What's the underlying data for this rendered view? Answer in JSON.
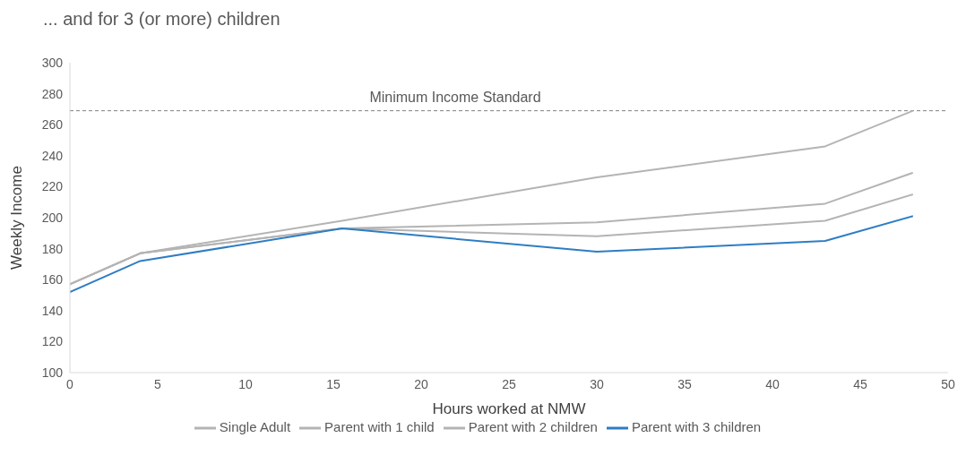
{
  "chart_data": {
    "type": "line",
    "title": "... and for 3 (or more) children",
    "xlabel": "Hours worked at NMW",
    "ylabel": "Weekly Income",
    "xlim": [
      0,
      50
    ],
    "xticks": [
      0,
      5,
      10,
      15,
      20,
      25,
      30,
      35,
      40,
      45,
      50
    ],
    "ylim": [
      100,
      300
    ],
    "yticks": [
      100,
      120,
      140,
      160,
      180,
      200,
      220,
      240,
      260,
      280,
      300
    ],
    "x": [
      0,
      4,
      15.5,
      30,
      43,
      48
    ],
    "series": [
      {
        "name": "Single Adult",
        "color": "#b4b4b4",
        "values": [
          157,
          177,
          198,
          226,
          246,
          269
        ]
      },
      {
        "name": "Parent with 1 child",
        "color": "#b4b4b4",
        "values": [
          157,
          177,
          193,
          197,
          209,
          229
        ]
      },
      {
        "name": "Parent with 2 children",
        "color": "#b4b4b4",
        "values": [
          157,
          177,
          193,
          188,
          198,
          215
        ]
      },
      {
        "name": "Parent with 3 children",
        "color": "#2e7dc4",
        "values": [
          152,
          172,
          193,
          178,
          185,
          201
        ]
      }
    ],
    "ref_lines": [
      {
        "axis": "y",
        "value": 269,
        "label": "Minimum Income Standard",
        "color": "#808080",
        "line_style": "dashed"
      }
    ],
    "grid": false,
    "legend": "bottom",
    "marker": "none",
    "line_style": "solid"
  }
}
